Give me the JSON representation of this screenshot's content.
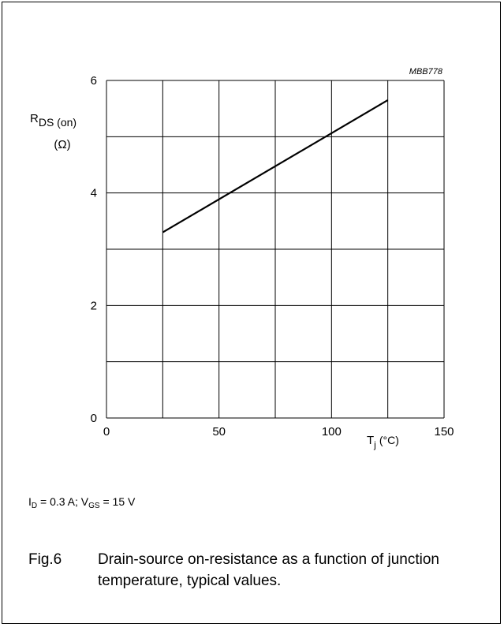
{
  "chart_data": {
    "type": "line",
    "code": "MBB778",
    "ylabel_main": "R",
    "ylabel_sub": "DS (on)",
    "ylabel_unit": "(Ω)",
    "xlabel_main": "T",
    "xlabel_sub": "j",
    "xlabel_unit": "(°C)",
    "xlim": [
      0,
      150
    ],
    "ylim": [
      0,
      6
    ],
    "xticks": [
      0,
      50,
      100,
      150
    ],
    "yticks": [
      0,
      2,
      4,
      6
    ],
    "grid": true,
    "series": [
      {
        "x": [
          25,
          125
        ],
        "y": [
          3.3,
          5.65
        ]
      }
    ]
  },
  "conditions": {
    "id_main": "I",
    "id_sub": "D",
    "id_val": " = 0.3 A; ",
    "vgs_main": "V",
    "vgs_sub": "GS",
    "vgs_val": " = 15 V"
  },
  "caption": {
    "number": "Fig.6",
    "text": "Drain-source on-resistance as a function of junction temperature, typical values."
  }
}
